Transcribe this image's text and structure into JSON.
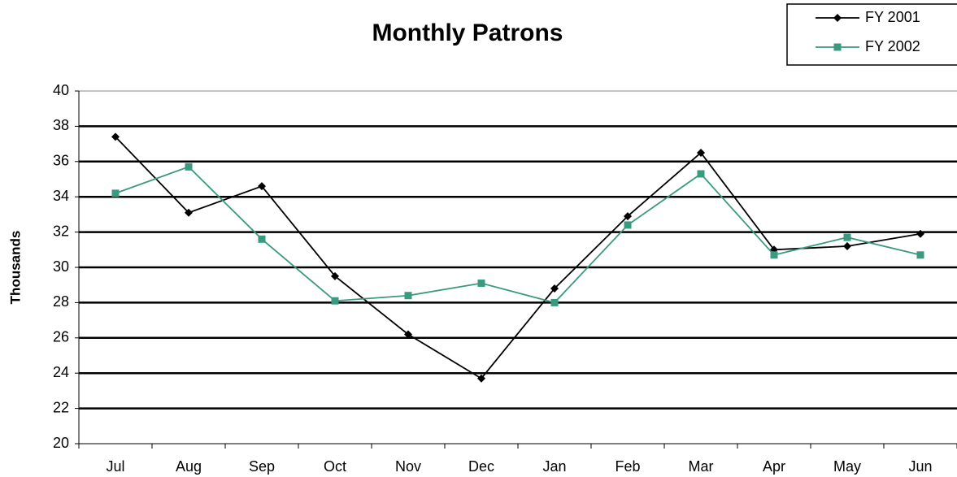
{
  "chart_data": {
    "type": "line",
    "title": "Monthly Patrons",
    "y_label": "Thousands",
    "categories": [
      "Jul",
      "Aug",
      "Sep",
      "Oct",
      "Nov",
      "Dec",
      "Jan",
      "Feb",
      "Mar",
      "Apr",
      "May",
      "Jun"
    ],
    "series": [
      {
        "name": "FY 2001",
        "color": "#000000",
        "marker": "diamond",
        "values": [
          37.4,
          33.1,
          34.6,
          29.5,
          26.2,
          23.7,
          28.8,
          32.9,
          36.5,
          31.0,
          31.2,
          31.9
        ]
      },
      {
        "name": "FY 2002",
        "color": "#3a9a80",
        "marker": "square",
        "values": [
          34.2,
          35.7,
          31.6,
          28.1,
          28.4,
          29.1,
          28.0,
          32.4,
          35.3,
          30.7,
          31.7,
          30.7
        ]
      }
    ],
    "ylim": [
      20,
      40
    ],
    "yticks": [
      20,
      22,
      24,
      26,
      28,
      30,
      32,
      34,
      36,
      38,
      40
    ],
    "grid": true,
    "legend": "top-right"
  }
}
